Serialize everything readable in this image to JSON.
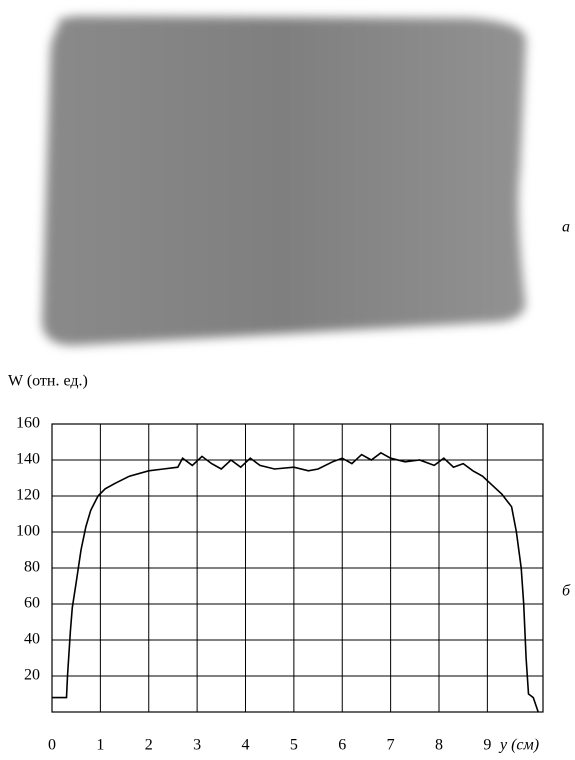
{
  "figure": {
    "panel_a_label": "а",
    "panel_b_label": "б"
  },
  "chart_data": {
    "type": "line",
    "y_label": "W (отн. ед.)",
    "x_label": "y (см)",
    "x": [
      0,
      0.3,
      0.32,
      0.38,
      0.42,
      0.5,
      0.6,
      0.7,
      0.8,
      0.95,
      1.1,
      1.3,
      1.6,
      2,
      2.3,
      2.6,
      2.7,
      2.9,
      3.1,
      3.3,
      3.5,
      3.7,
      3.9,
      4.1,
      4.3,
      4.6,
      5,
      5.3,
      5.5,
      5.8,
      6,
      6.2,
      6.4,
      6.6,
      6.8,
      7,
      7.3,
      7.6,
      7.9,
      8.1,
      8.3,
      8.5,
      8.7,
      8.9,
      9.1,
      9.3,
      9.5,
      9.6,
      9.7,
      9.75,
      9.8,
      9.85,
      9.95,
      10.05
    ],
    "series": [
      {
        "color": "#000000",
        "values": [
          8,
          8,
          20,
          45,
          58,
          72,
          90,
          103,
          112,
          120,
          124,
          127,
          131,
          134,
          135,
          136,
          141,
          137,
          142,
          138,
          135,
          140,
          136,
          141,
          137,
          135,
          136,
          134,
          135,
          139,
          141,
          138,
          143,
          140,
          144,
          141,
          139,
          140,
          137,
          141,
          136,
          138,
          134,
          131,
          126,
          121,
          114,
          100,
          80,
          60,
          30,
          10,
          8,
          0
        ]
      }
    ],
    "xlim": [
      0,
      10.15
    ],
    "xticks": [
      0,
      1,
      2,
      3,
      4,
      5,
      6,
      7,
      8,
      9
    ],
    "ylim": [
      0,
      160
    ],
    "yticks": [
      20,
      40,
      60,
      80,
      100,
      120,
      140,
      160
    ],
    "grid": true
  }
}
